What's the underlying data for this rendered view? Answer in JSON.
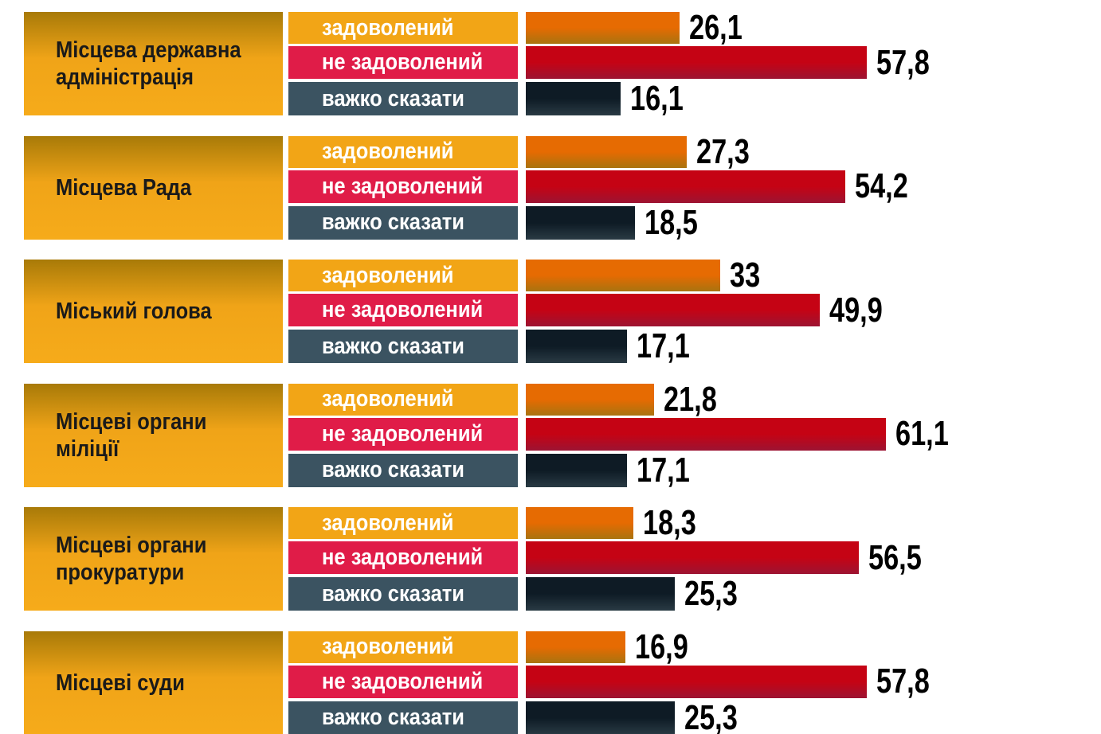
{
  "chart_data": {
    "type": "bar",
    "categories": [
      "Місцева державна адміністрація",
      "Місцева Рада",
      "Міський голова",
      "Місцеві органи міліції",
      "Місцеві органи прокуратури",
      "Місцеві суди"
    ],
    "series": [
      {
        "name": "задоволений",
        "color": "#f2a516",
        "values": [
          26.1,
          27.3,
          33,
          21.8,
          18.3,
          16.9
        ],
        "value_labels": [
          "26,1",
          "27,3",
          "33",
          "21,8",
          "18,3",
          "16,9"
        ]
      },
      {
        "name": "не задоволений",
        "color": "#e01c48",
        "values": [
          57.8,
          54.2,
          49.9,
          61.1,
          56.5,
          57.8
        ],
        "value_labels": [
          "57,8",
          "54,2",
          "49,9",
          "61,1",
          "56,5",
          "57,8"
        ]
      },
      {
        "name": "важко сказати",
        "color": "#3b5361",
        "values": [
          16.1,
          18.5,
          17.1,
          17.1,
          25.3,
          25.3
        ],
        "value_labels": [
          "16,1",
          "18,5",
          "17,1",
          "17,1",
          "25,3",
          "25,3"
        ]
      }
    ]
  }
}
